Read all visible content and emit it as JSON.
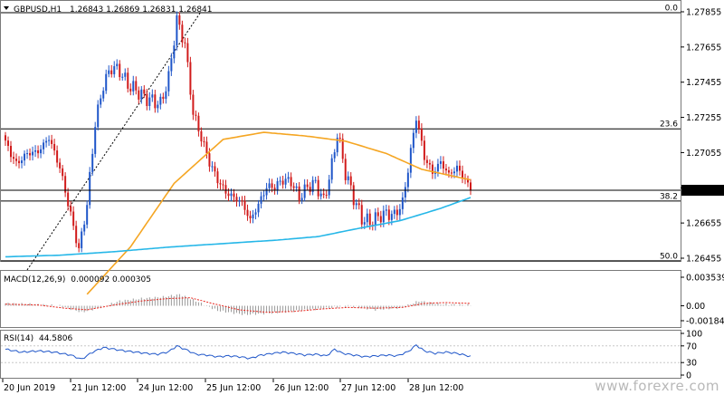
{
  "header": {
    "symbol": "GBPUSD,H1",
    "ohlc": "1.26843 1.26869 1.26831 1.26841"
  },
  "watermark": "www.forexre.com",
  "colors": {
    "bull": "#1f56c9",
    "bear": "#d11b1b",
    "ma_fast": "#f5a623",
    "ma_slow": "#26b7e8",
    "fib": "#000000",
    "macd_signal": "#e8271f",
    "rsi": "#1f56c9"
  },
  "chart_data": [
    {
      "type": "candlestick",
      "title": "GBPUSD,H1",
      "ylim": [
        1.26455,
        1.27855
      ],
      "y_ticks": [
        "1.27855",
        "1.27655",
        "1.27455",
        "1.27255",
        "1.27055",
        "1.26855",
        "1.26655",
        "1.26455"
      ],
      "current_price": "1.26841",
      "fib_levels": [
        {
          "label": "0.0",
          "value": 1.2785
        },
        {
          "label": "23.6",
          "value": 1.2719
        },
        {
          "label": "38.2",
          "value": 1.2678
        },
        {
          "label": "50.0",
          "value": 1.2644
        }
      ],
      "x_labels": [
        "20 Jun 2019",
        "21 Jun 12:00",
        "24 Jun 12:00",
        "25 Jun 12:00",
        "26 Jun 12:00",
        "27 Jun 12:00",
        "28 Jun 12:00"
      ],
      "close_anchors": [
        [
          0,
          1.2711
        ],
        [
          4,
          1.2699
        ],
        [
          8,
          1.2705
        ],
        [
          12,
          1.2706
        ],
        [
          16,
          1.2714
        ],
        [
          20,
          1.2697
        ],
        [
          24,
          1.267
        ],
        [
          27,
          1.265
        ],
        [
          30,
          1.2676
        ],
        [
          33,
          1.2722
        ],
        [
          36,
          1.2744
        ],
        [
          39,
          1.2754
        ],
        [
          42,
          1.2752
        ],
        [
          45,
          1.2744
        ],
        [
          48,
          1.2741
        ],
        [
          51,
          1.2737
        ],
        [
          54,
          1.2735
        ],
        [
          57,
          1.2733
        ],
        [
          60,
          1.2748
        ],
        [
          63,
          1.2781
        ],
        [
          66,
          1.2767
        ],
        [
          69,
          1.2728
        ],
        [
          72,
          1.2714
        ],
        [
          75,
          1.27
        ],
        [
          78,
          1.269
        ],
        [
          81,
          1.2683
        ],
        [
          84,
          1.268
        ],
        [
          87,
          1.2677
        ],
        [
          90,
          1.2667
        ],
        [
          93,
          1.2676
        ],
        [
          96,
          1.2686
        ],
        [
          99,
          1.2686
        ],
        [
          102,
          1.269
        ],
        [
          105,
          1.2689
        ],
        [
          108,
          1.268
        ],
        [
          111,
          1.2686
        ],
        [
          114,
          1.2688
        ],
        [
          117,
          1.2678
        ],
        [
          120,
          1.2698
        ],
        [
          122,
          1.2717
        ],
        [
          125,
          1.2694
        ],
        [
          128,
          1.268
        ],
        [
          131,
          1.2668
        ],
        [
          134,
          1.2666
        ],
        [
          137,
          1.2669
        ],
        [
          140,
          1.2671
        ],
        [
          143,
          1.267
        ],
        [
          146,
          1.2677
        ],
        [
          149,
          1.2706
        ],
        [
          151,
          1.2726
        ],
        [
          154,
          1.2703
        ],
        [
          157,
          1.2694
        ],
        [
          160,
          1.27
        ],
        [
          163,
          1.2693
        ],
        [
          166,
          1.2697
        ],
        [
          169,
          1.269
        ],
        [
          171,
          1.2684
        ]
      ],
      "candle_count": 172,
      "moving_average_fast": [
        [
          30,
          1.2625
        ],
        [
          46,
          1.2652
        ],
        [
          62,
          1.2688
        ],
        [
          80,
          1.2713
        ],
        [
          95,
          1.2717
        ],
        [
          110,
          1.2715
        ],
        [
          125,
          1.2712
        ],
        [
          140,
          1.2705
        ],
        [
          153,
          1.2696
        ],
        [
          171,
          1.269
        ]
      ],
      "moving_average_slow": [
        [
          0,
          1.26463
        ],
        [
          20,
          1.26472
        ],
        [
          40,
          1.26492
        ],
        [
          60,
          1.26518
        ],
        [
          80,
          1.26538
        ],
        [
          100,
          1.26558
        ],
        [
          115,
          1.26578
        ],
        [
          130,
          1.26625
        ],
        [
          145,
          1.26668
        ],
        [
          160,
          1.26738
        ],
        [
          171,
          1.268
        ]
      ]
    },
    {
      "type": "bar",
      "title": "MACD(12,26,9)",
      "header_values": "0.000092 0.000305",
      "y_ticks": [
        "0.003539",
        "0.00",
        "-0.001848"
      ],
      "ylim": [
        -0.001848,
        0.003539
      ],
      "histogram_anchors": [
        [
          0,
          0.0003
        ],
        [
          10,
          0.0002
        ],
        [
          20,
          0.0
        ],
        [
          28,
          -0.0008
        ],
        [
          34,
          -0.0003
        ],
        [
          42,
          0.0006
        ],
        [
          50,
          0.0009
        ],
        [
          58,
          0.0011
        ],
        [
          64,
          0.0014
        ],
        [
          70,
          0.0006
        ],
        [
          78,
          -0.0006
        ],
        [
          88,
          -0.0011
        ],
        [
          98,
          -0.0009
        ],
        [
          108,
          -0.0006
        ],
        [
          118,
          -0.0003
        ],
        [
          126,
          0.0
        ],
        [
          136,
          -0.0005
        ],
        [
          146,
          -0.0002
        ],
        [
          152,
          0.0006
        ],
        [
          160,
          0.0002
        ],
        [
          171,
          0.0001
        ]
      ],
      "signal_anchors": [
        [
          0,
          0.0002
        ],
        [
          12,
          0.0001
        ],
        [
          22,
          -0.0003
        ],
        [
          30,
          -0.0005
        ],
        [
          40,
          0.0001
        ],
        [
          50,
          0.0006
        ],
        [
          60,
          0.0009
        ],
        [
          68,
          0.001
        ],
        [
          76,
          0.0003
        ],
        [
          86,
          -0.0005
        ],
        [
          96,
          -0.0008
        ],
        [
          106,
          -0.0007
        ],
        [
          116,
          -0.0004
        ],
        [
          126,
          -0.0002
        ],
        [
          136,
          -0.0003
        ],
        [
          146,
          -0.0002
        ],
        [
          154,
          0.0003
        ],
        [
          162,
          0.0004
        ],
        [
          171,
          0.0003
        ]
      ]
    },
    {
      "type": "line",
      "title": "RSI(14)",
      "header_values": "44.5806",
      "y_ticks": [
        "100",
        "70",
        "30",
        "0"
      ],
      "ylim": [
        0,
        100
      ],
      "series_anchors": [
        [
          0,
          62
        ],
        [
          6,
          55
        ],
        [
          12,
          58
        ],
        [
          18,
          55
        ],
        [
          24,
          48
        ],
        [
          28,
          38
        ],
        [
          32,
          55
        ],
        [
          36,
          66
        ],
        [
          40,
          62
        ],
        [
          44,
          58
        ],
        [
          48,
          55
        ],
        [
          52,
          52
        ],
        [
          56,
          50
        ],
        [
          60,
          56
        ],
        [
          63,
          70
        ],
        [
          66,
          62
        ],
        [
          70,
          50
        ],
        [
          74,
          48
        ],
        [
          78,
          44
        ],
        [
          82,
          46
        ],
        [
          86,
          44
        ],
        [
          90,
          40
        ],
        [
          94,
          48
        ],
        [
          98,
          52
        ],
        [
          102,
          55
        ],
        [
          106,
          52
        ],
        [
          110,
          48
        ],
        [
          114,
          50
        ],
        [
          118,
          46
        ],
        [
          121,
          62
        ],
        [
          124,
          52
        ],
        [
          128,
          48
        ],
        [
          132,
          44
        ],
        [
          136,
          46
        ],
        [
          140,
          48
        ],
        [
          144,
          46
        ],
        [
          148,
          56
        ],
        [
          151,
          72
        ],
        [
          154,
          58
        ],
        [
          158,
          52
        ],
        [
          162,
          55
        ],
        [
          166,
          52
        ],
        [
          171,
          44.58
        ]
      ]
    }
  ]
}
